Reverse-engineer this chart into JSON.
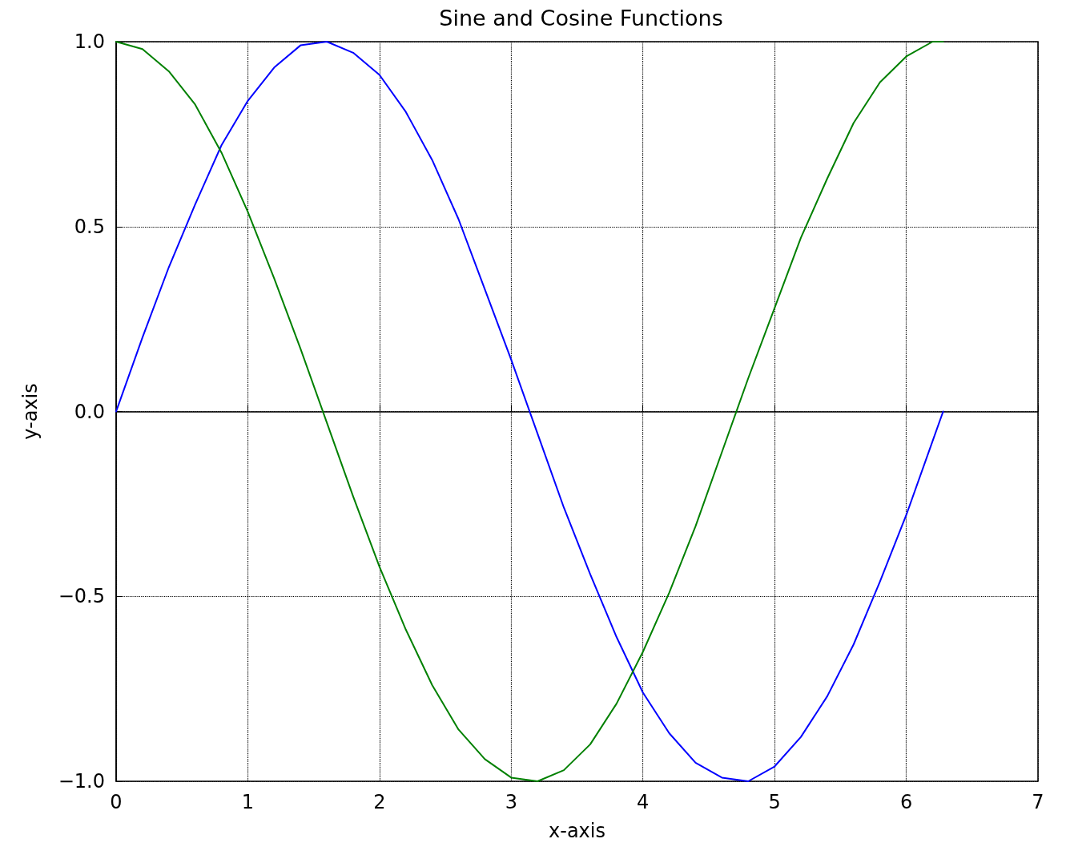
{
  "chart_data": {
    "type": "line",
    "title": "Sine and Cosine Functions",
    "xlabel": "x-axis",
    "ylabel": "y-axis",
    "x": [
      0,
      0.2,
      0.4,
      0.6,
      0.8,
      1.0,
      1.2,
      1.4,
      1.6,
      1.8,
      2.0,
      2.2,
      2.4,
      2.6,
      2.8,
      3.0,
      3.2,
      3.4,
      3.6,
      3.8,
      4.0,
      4.2,
      4.4,
      4.6,
      4.8,
      5.0,
      5.2,
      5.4,
      5.6,
      5.8,
      6.0,
      6.2,
      6.28
    ],
    "series": [
      {
        "color": "#0000ff",
        "values": [
          0,
          0.2,
          0.39,
          0.56,
          0.72,
          0.84,
          0.93,
          0.99,
          1.0,
          0.97,
          0.91,
          0.81,
          0.68,
          0.52,
          0.33,
          0.14,
          -0.06,
          -0.26,
          -0.44,
          -0.61,
          -0.76,
          -0.87,
          -0.95,
          -0.99,
          -1.0,
          -0.96,
          -0.88,
          -0.77,
          -0.63,
          -0.46,
          -0.28,
          -0.08,
          0
        ]
      },
      {
        "color": "#008000",
        "values": [
          1,
          0.98,
          0.92,
          0.83,
          0.7,
          0.54,
          0.36,
          0.17,
          -0.03,
          -0.23,
          -0.42,
          -0.59,
          -0.74,
          -0.86,
          -0.94,
          -0.99,
          -1.0,
          -0.97,
          -0.9,
          -0.79,
          -0.65,
          -0.49,
          -0.31,
          -0.11,
          0.09,
          0.28,
          0.47,
          0.63,
          0.78,
          0.89,
          0.96,
          1.0,
          1.0
        ]
      }
    ],
    "xlim": [
      0,
      7
    ],
    "xticks": [
      0,
      1,
      2,
      3,
      4,
      5,
      6,
      7
    ],
    "ylim": [
      -1,
      1
    ],
    "yticks": [
      {
        "value": -1,
        "label": "−1.0"
      },
      {
        "value": -0.5,
        "label": "−0.5"
      },
      {
        "value": 0,
        "label": "0.0"
      },
      {
        "value": 0.5,
        "label": "0.5"
      },
      {
        "value": 1,
        "label": "1.0"
      }
    ],
    "grid": true,
    "marker": "none",
    "line_style": "solid"
  }
}
